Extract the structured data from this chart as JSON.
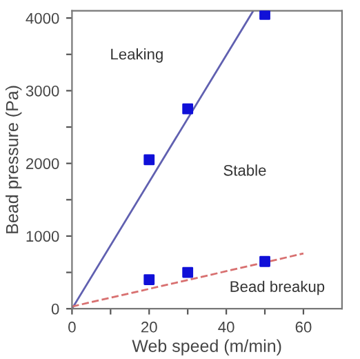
{
  "chart_data": {
    "type": "scatter",
    "xlabel": "Web speed (m/min)",
    "ylabel": "Bead pressure (Pa)",
    "xlim": [
      0,
      70
    ],
    "ylim": [
      0,
      4100
    ],
    "xticks": [
      0,
      {
        "value": 10,
        "label": null
      },
      20,
      {
        "value": 30,
        "label": null
      },
      40,
      {
        "value": 50,
        "label": null
      },
      60
    ],
    "yticks": [
      0,
      {
        "value": 500,
        "label": null
      },
      1000,
      {
        "value": 1500,
        "label": null
      },
      2000,
      {
        "value": 2500,
        "label": null
      },
      3000,
      {
        "value": 3500,
        "label": null
      },
      4000
    ],
    "grid": false,
    "legend": false,
    "marker": "square",
    "series": [
      {
        "color": "#1010d8",
        "x": [
          20,
          30,
          50
        ],
        "values": [
          2050,
          2750,
          4050
        ]
      },
      {
        "color": "#1010d8",
        "x": [
          20,
          30,
          50
        ],
        "values": [
          400,
          500,
          650
        ]
      },
      {
        "type": "line",
        "color": "#6060b0",
        "line_style": "solid",
        "marker": "none",
        "x": [
          0,
          47
        ],
        "values": [
          0,
          4100
        ]
      },
      {
        "type": "line",
        "color": "#d87070",
        "line_style": "dashed",
        "marker": "none",
        "x": [
          0,
          60
        ],
        "values": [
          30,
          760
        ]
      }
    ],
    "annotations": [
      "Leaking",
      "Stable",
      "Bead breakup"
    ]
  }
}
